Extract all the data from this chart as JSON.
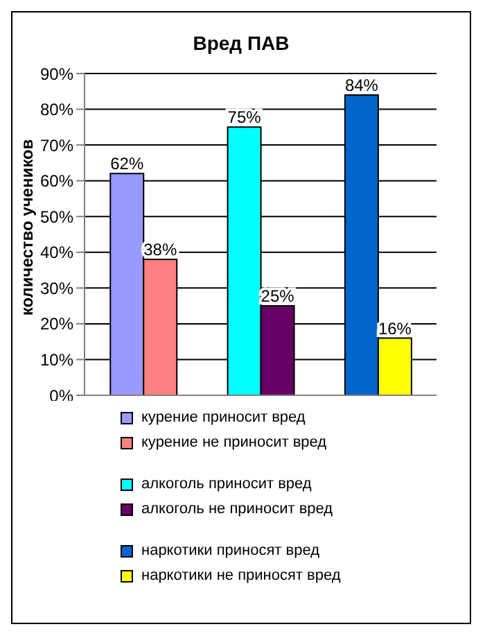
{
  "chart_data": {
    "type": "bar",
    "title": "Вред ПАВ",
    "ylabel": "количество учеников",
    "categories": [
      null,
      null,
      null
    ],
    "series": [
      {
        "name": "курение приносит вред",
        "color": "#9999ff",
        "values": [
          62,
          null,
          null
        ],
        "value_labels": [
          "62%",
          null,
          null
        ]
      },
      {
        "name": "курение не приносит вред",
        "color": "#ff8080",
        "values": [
          38,
          null,
          null
        ],
        "value_labels": [
          "38%",
          null,
          null
        ]
      },
      {
        "name": "алкоголь приносит вред",
        "color": "#00ffff",
        "values": [
          null,
          75,
          null
        ],
        "value_labels": [
          null,
          "75%",
          null
        ]
      },
      {
        "name": "алкоголь не приносит вред",
        "color": "#660066",
        "values": [
          null,
          25,
          null
        ],
        "value_labels": [
          null,
          "25%",
          null
        ]
      },
      {
        "name": "наркотики приносят вред",
        "color": "#0066cc",
        "values": [
          null,
          null,
          84
        ],
        "value_labels": [
          null,
          null,
          "84%"
        ]
      },
      {
        "name": "наркотики не приносят вред",
        "color": "#ffff00",
        "values": [
          null,
          null,
          16
        ],
        "value_labels": [
          null,
          null,
          "16%"
        ]
      }
    ],
    "ylim": [
      0,
      90
    ],
    "yticks": [
      {
        "value": 0,
        "label": "0%"
      },
      {
        "value": 10,
        "label": "10%"
      },
      {
        "value": 20,
        "label": "20%"
      },
      {
        "value": 30,
        "label": "30%"
      },
      {
        "value": 40,
        "label": "40%"
      },
      {
        "value": 50,
        "label": "50%"
      },
      {
        "value": 60,
        "label": "60%"
      },
      {
        "value": 70,
        "label": "70%"
      },
      {
        "value": 80,
        "label": "80%"
      },
      {
        "value": 90,
        "label": "90%"
      }
    ],
    "grid": "y",
    "legend": "bottom"
  }
}
